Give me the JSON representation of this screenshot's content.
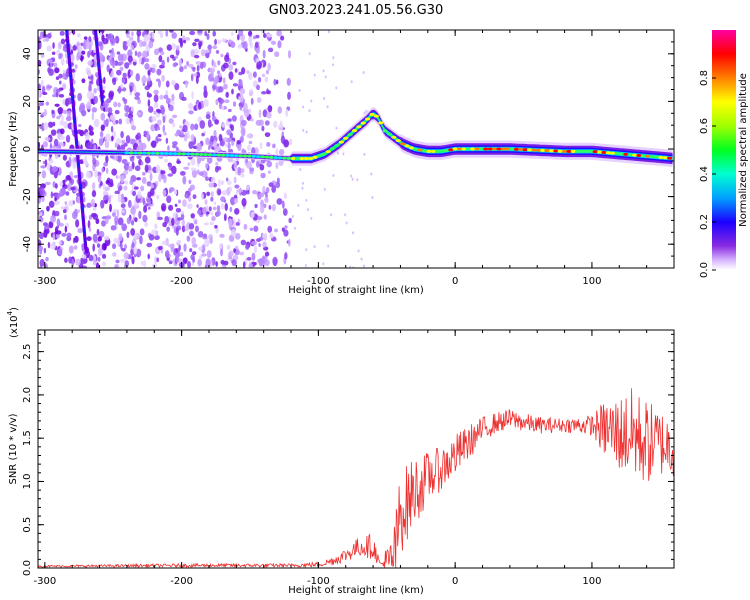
{
  "title": "GN03.2023.241.05.56.G30",
  "chart_data": [
    {
      "type": "heatmap",
      "xlabel": "Height of straight line (km)",
      "ylabel": "Frequency (Hz)",
      "xlim": [
        -305,
        160
      ],
      "ylim": [
        -50,
        50
      ],
      "xticks": [
        -300,
        -200,
        -100,
        0,
        100
      ],
      "yticks": [
        -40,
        -20,
        0,
        20,
        40
      ],
      "colorbar": {
        "label": "Normalized spectral amplitude",
        "range": [
          0,
          1
        ],
        "ticks": [
          "0.0",
          "0.2",
          "0.4",
          "0.6",
          "0.8"
        ],
        "tick_values": [
          0,
          0.2,
          0.4,
          0.6,
          0.8
        ],
        "colors": [
          "#ffffff",
          "#c8a0ff",
          "#7f00ff",
          "#0000ff",
          "#00e0ff",
          "#00ff40",
          "#ffff00",
          "#ff8000",
          "#ff0000",
          "#ff00a0"
        ]
      },
      "main_trace": [
        [
          -300,
          -1
        ],
        [
          -250,
          -1.5
        ],
        [
          -200,
          -2
        ],
        [
          -150,
          -3
        ],
        [
          -120,
          -4
        ],
        [
          -105,
          -4
        ],
        [
          -95,
          -2
        ],
        [
          -85,
          2
        ],
        [
          -75,
          7
        ],
        [
          -65,
          12
        ],
        [
          -60,
          15
        ],
        [
          -56,
          13
        ],
        [
          -52,
          8
        ],
        [
          -45,
          5
        ],
        [
          -38,
          2
        ],
        [
          -30,
          0
        ],
        [
          -20,
          -1
        ],
        [
          -10,
          -1
        ],
        [
          0,
          0
        ],
        [
          20,
          0
        ],
        [
          40,
          0
        ],
        [
          60,
          -0.5
        ],
        [
          80,
          -1
        ],
        [
          100,
          -1
        ],
        [
          120,
          -2
        ],
        [
          140,
          -3
        ],
        [
          160,
          -4
        ]
      ],
      "streaks": [
        {
          "x": [
            -284,
            -270
          ],
          "y": [
            50,
            -42
          ]
        },
        {
          "x": [
            -263,
            -258
          ],
          "y": [
            50,
            20
          ]
        }
      ]
    },
    {
      "type": "line",
      "xlabel": "Height of straight line (km)",
      "ylabel": "SNR (10 * v/v)",
      "y_multiplier": "(x10",
      "y_multiplier_exp": "4",
      "y_multiplier_close": ")",
      "xlim": [
        -305,
        160
      ],
      "ylim": [
        0,
        2.75
      ],
      "xticks": [
        -300,
        -200,
        -100,
        0,
        100
      ],
      "yticks": [
        "0.0",
        "0.5",
        "1.0",
        "1.5",
        "2.0",
        "2.5"
      ],
      "ytick_values": [
        0,
        0.5,
        1.0,
        1.5,
        2.0,
        2.5
      ],
      "color": "#ee3030",
      "envelope": {
        "x": [
          -305,
          -200,
          -120,
          -100,
          -90,
          -80,
          -70,
          -60,
          -55,
          -45,
          -40,
          -35,
          -30,
          -25,
          -20,
          -10,
          0,
          10,
          20,
          30,
          40,
          60,
          80,
          100,
          110,
          120,
          130,
          140,
          150,
          160
        ],
        "mean": [
          0.02,
          0.03,
          0.03,
          0.04,
          0.08,
          0.15,
          0.25,
          0.25,
          0.05,
          0.05,
          0.65,
          0.75,
          0.9,
          0.95,
          1.05,
          1.15,
          1.3,
          1.45,
          1.6,
          1.68,
          1.72,
          1.65,
          1.65,
          1.65,
          1.6,
          1.55,
          1.55,
          1.45,
          1.45,
          1.4
        ],
        "amplitude": [
          0.01,
          0.02,
          0.02,
          0.03,
          0.05,
          0.08,
          0.12,
          0.15,
          0.03,
          0.4,
          0.5,
          0.45,
          0.4,
          0.35,
          0.3,
          0.25,
          0.25,
          0.2,
          0.15,
          0.12,
          0.12,
          0.1,
          0.08,
          0.12,
          0.35,
          0.45,
          0.55,
          0.5,
          0.4,
          0.35
        ]
      }
    }
  ]
}
